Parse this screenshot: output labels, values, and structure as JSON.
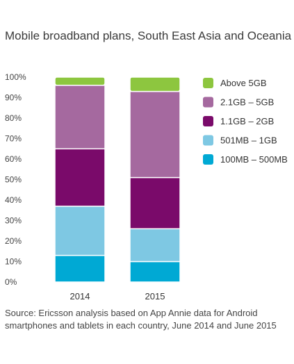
{
  "title": "Mobile broadband plans, South East Asia and Oceania",
  "source": "Source: Ericsson analysis based on App Annie data for Android smartphones and tablets in each country, June 2014 and June 2015",
  "chart_data": {
    "type": "bar",
    "stacked": true,
    "categories": [
      "2014",
      "2015"
    ],
    "ylim": [
      0,
      100
    ],
    "yticks": [
      "0%",
      "10%",
      "20%",
      "30%",
      "40%",
      "50%",
      "60%",
      "70%",
      "80%",
      "90%",
      "100%"
    ],
    "grid": false,
    "legend_position": "right",
    "series": [
      {
        "name": "100MB – 500MB",
        "color": "#00a9d4",
        "values": [
          13,
          10
        ]
      },
      {
        "name": "501MB – 1GB",
        "color": "#7ec8e3",
        "values": [
          24,
          16
        ]
      },
      {
        "name": "1.1GB – 2GB",
        "color": "#7a0a6a",
        "values": [
          28,
          25
        ]
      },
      {
        "name": "2.1GB – 5GB",
        "color": "#a5699f",
        "values": [
          31,
          42
        ]
      },
      {
        "name": "Above 5GB",
        "color": "#8dc63f",
        "values": [
          4,
          7
        ]
      }
    ]
  }
}
